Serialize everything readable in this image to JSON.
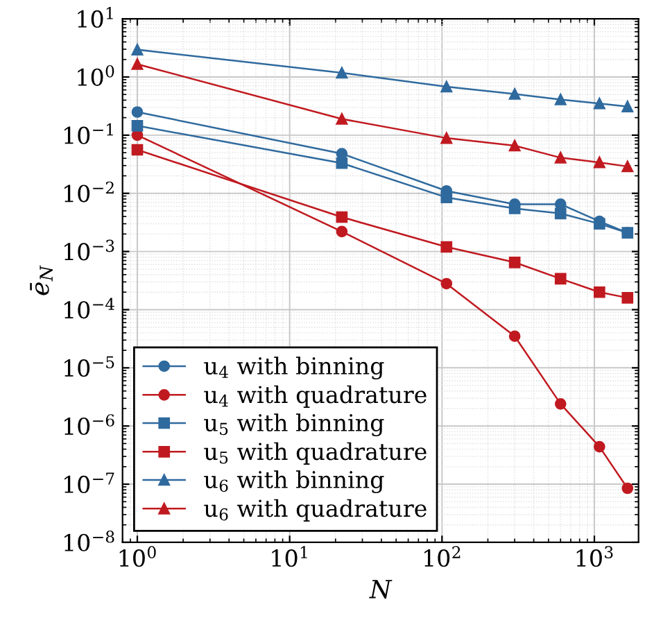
{
  "chart_data": {
    "type": "line",
    "xlabel": "N",
    "ylabel": "ē$_{N}$",
    "log": "xy",
    "grid": true,
    "legend": "bottom left",
    "xlim": [
      0.8,
      1950
    ],
    "ylim": [
      1e-08,
      10
    ],
    "xticks": [
      {
        "value": 1,
        "label": "10$^{0}$"
      },
      {
        "value": 10,
        "label": "10$^{1}$"
      },
      {
        "value": 100,
        "label": "10$^{2}$"
      },
      {
        "value": 1000,
        "label": "10$^{3}$"
      }
    ],
    "yticks": [
      {
        "value": 1e-08,
        "label": "10$^{−8}$"
      },
      {
        "value": 1e-07,
        "label": "10$^{−7}$"
      },
      {
        "value": 1e-06,
        "label": "10$^{−6}$"
      },
      {
        "value": 1e-05,
        "label": "10$^{−5}$"
      },
      {
        "value": 0.0001,
        "label": "10$^{−4}$"
      },
      {
        "value": 0.001,
        "label": "10$^{−3}$"
      },
      {
        "value": 0.01,
        "label": "10$^{−2}$"
      },
      {
        "value": 0.1,
        "label": "10$^{−1}$"
      },
      {
        "value": 1,
        "label": "10$^{0}$"
      },
      {
        "value": 10,
        "label": "10$^{1}$"
      }
    ],
    "x": [
      1,
      22,
      107,
      300,
      600,
      1080,
      1650
    ],
    "series": [
      {
        "name": "u$_{4}$ with binning",
        "color": "#2f6a9e",
        "marker": "circle",
        "values": [
          0.25,
          0.048,
          0.011,
          0.0065,
          0.0065,
          0.0033,
          0.0021
        ]
      },
      {
        "name": "u$_{4}$ with quadrature",
        "color": "#c01a20",
        "marker": "circle",
        "values": [
          0.1,
          0.0022,
          0.00028,
          3.5e-05,
          2.4e-06,
          4.4e-07,
          8.5e-08
        ]
      },
      {
        "name": "u$_{5}$ with binning",
        "color": "#2f6a9e",
        "marker": "square",
        "values": [
          0.145,
          0.033,
          0.0085,
          0.0055,
          0.0045,
          0.003,
          0.0021
        ]
      },
      {
        "name": "u$_{5}$ with quadrature",
        "color": "#c01a20",
        "marker": "square",
        "values": [
          0.056,
          0.0039,
          0.0012,
          0.00065,
          0.00034,
          0.0002,
          0.00016
        ]
      },
      {
        "name": "u$_{6}$ with binning",
        "color": "#2f6a9e",
        "marker": "triangle",
        "values": [
          2.95,
          1.18,
          0.68,
          0.51,
          0.41,
          0.35,
          0.31
        ]
      },
      {
        "name": "u$_{6}$ with quadrature",
        "color": "#c01a20",
        "marker": "triangle",
        "values": [
          1.66,
          0.19,
          0.089,
          0.066,
          0.041,
          0.034,
          0.029
        ]
      }
    ]
  }
}
